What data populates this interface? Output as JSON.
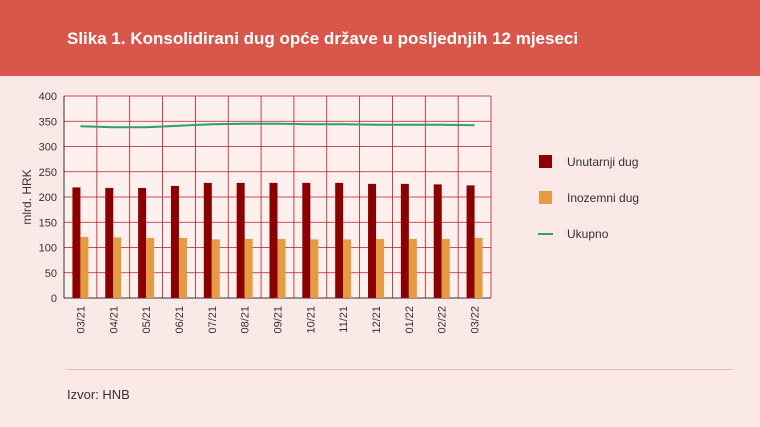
{
  "header": {
    "title": "Slika 1. Konsolidirani dug opće države u posljednjih 12 mjeseci"
  },
  "footer": {
    "source": "Izvor: HNB"
  },
  "colors": {
    "header_bg": "#d9574a",
    "page_bg": "#fbe9e7",
    "plot_bg": "#fdf0ee",
    "grid": "#b91c1c",
    "domestic": "#8b0000",
    "foreign": "#e59a44",
    "total": "#2fa06a"
  },
  "chart_data": {
    "type": "bar",
    "title": "",
    "xlabel": "",
    "ylabel": "mlrd. HRK",
    "ylim": [
      0,
      400
    ],
    "yticks": [
      0,
      50,
      100,
      150,
      200,
      250,
      300,
      350,
      400
    ],
    "grid": true,
    "legend_position": "right",
    "categories": [
      "03/21",
      "04/21",
      "05/21",
      "06/21",
      "07/21",
      "08/21",
      "09/21",
      "10/21",
      "11/21",
      "12/21",
      "01/22",
      "02/22",
      "03/22"
    ],
    "series": [
      {
        "name": "Unutarnji dug",
        "kind": "bar",
        "color": "#8b0000",
        "values": [
          219,
          218,
          218,
          222,
          228,
          228,
          228,
          228,
          228,
          226,
          226,
          225,
          223
        ]
      },
      {
        "name": "Inozemni dug",
        "kind": "bar",
        "color": "#e59a44",
        "values": [
          121,
          120,
          119,
          119,
          116,
          117,
          117,
          116,
          116,
          117,
          117,
          117,
          119
        ]
      },
      {
        "name": "Ukupno",
        "kind": "line",
        "color": "#2fa06a",
        "values": [
          340,
          338,
          338,
          341,
          344,
          345,
          345,
          344,
          344,
          343,
          343,
          343,
          342
        ]
      }
    ]
  }
}
